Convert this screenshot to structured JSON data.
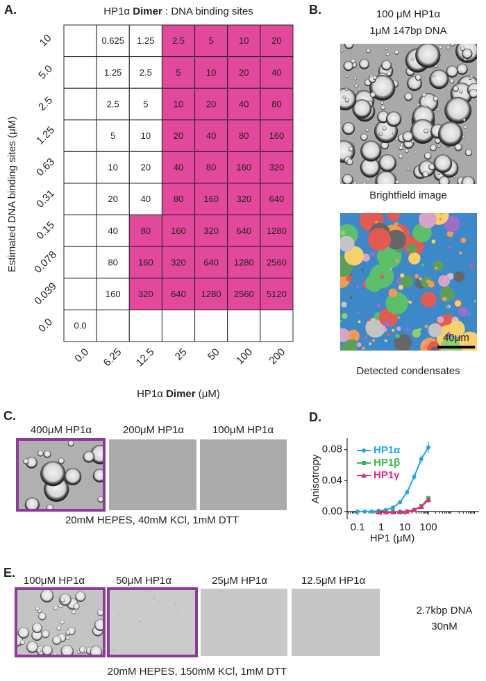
{
  "panel_a": {
    "letter": "A.",
    "title_parts": [
      "HP1α ",
      "Dimer",
      " : DNA binding sites"
    ],
    "y_label": "Estimated DNA binding sites (μM)",
    "x_label_parts": [
      "HP1α ",
      "Dimer",
      " (μM)"
    ],
    "row_labels": [
      "10",
      "5.0",
      "2.5",
      "1.25",
      "0.63",
      "0.31",
      "0.15",
      "0.078",
      "0.039",
      "0.0"
    ],
    "col_labels": [
      "0.0",
      "6.25",
      "12.5",
      "25",
      "50",
      "100",
      "200"
    ],
    "condensate_color": "#e2489b",
    "cells": [
      [
        null,
        "0.625",
        "1.25",
        "2.5",
        "5",
        "10",
        "20"
      ],
      [
        null,
        "1.25",
        "2.5",
        "5",
        "10",
        "20",
        "40"
      ],
      [
        null,
        "2.5",
        "5",
        "10",
        "20",
        "40",
        "80"
      ],
      [
        null,
        "5",
        "10",
        "20",
        "40",
        "80",
        "160"
      ],
      [
        null,
        "10",
        "20",
        "40",
        "80",
        "160",
        "320"
      ],
      [
        null,
        "20",
        "40",
        "80",
        "160",
        "320",
        "640"
      ],
      [
        null,
        "40",
        "80",
        "160",
        "320",
        "640",
        "1280"
      ],
      [
        null,
        "80",
        "160",
        "320",
        "640",
        "1280",
        "2560"
      ],
      [
        null,
        "160",
        "320",
        "640",
        "1280",
        "2560",
        "5120"
      ],
      [
        "0.0",
        null,
        null,
        null,
        null,
        null,
        null
      ]
    ],
    "condensate": [
      [
        false,
        false,
        false,
        true,
        true,
        true,
        true
      ],
      [
        false,
        false,
        false,
        true,
        true,
        true,
        true
      ],
      [
        false,
        false,
        false,
        true,
        true,
        true,
        true
      ],
      [
        false,
        false,
        false,
        true,
        true,
        true,
        true
      ],
      [
        false,
        false,
        false,
        true,
        true,
        true,
        true
      ],
      [
        false,
        false,
        false,
        true,
        true,
        true,
        true
      ],
      [
        false,
        false,
        true,
        true,
        true,
        true,
        true
      ],
      [
        false,
        false,
        true,
        true,
        true,
        true,
        true
      ],
      [
        false,
        false,
        true,
        true,
        true,
        true,
        true
      ],
      [
        false,
        false,
        false,
        false,
        false,
        false,
        false
      ]
    ]
  },
  "panel_b": {
    "letter": "B.",
    "title_lines": [
      "100 μM HP1α",
      "1μM 147bp DNA"
    ],
    "image_captions": [
      "Brightfield image",
      "Detected condensates"
    ],
    "scale_bar": "40μm"
  },
  "panel_c": {
    "letter": "C.",
    "image_labels": [
      "400μM HP1α",
      "200μM HP1α",
      "100μM HP1α"
    ],
    "caption": "20mM HEPES, 40mM KCl, 1mM DTT"
  },
  "chart_data": {
    "type": "line",
    "letter": "D.",
    "y_label": "Anisotropy",
    "x_label": "HP1 (μM)",
    "log_x": true,
    "x": [
      0.1,
      0.2,
      0.39,
      0.78,
      1.56,
      3.13,
      6.25,
      12.5,
      25,
      50,
      100
    ],
    "xlim": [
      0.036,
      14000
    ],
    "xticks": [
      0.1,
      1,
      10,
      100
    ],
    "ylim": [
      -0.01,
      0.095
    ],
    "yticks": [
      {
        "value": 0,
        "label": "0.00"
      },
      {
        "value": 0.04,
        "label": "0.04"
      },
      {
        "value": 0.08,
        "label": "0.08"
      }
    ],
    "legend": "upper left",
    "series": [
      {
        "name": "HP1α",
        "color": "#1ea8e0",
        "marker": "circle",
        "values": [
          0,
          0,
          0,
          0.001,
          0.002,
          0.005,
          0.012,
          0.025,
          0.045,
          0.068,
          0.083
        ],
        "errors": [
          0.001,
          0.001,
          0.001,
          0.001,
          0.001,
          0.002,
          0.002,
          0.003,
          0.004,
          0.006,
          0.008
        ]
      },
      {
        "name": "HP1β",
        "color": "#3ab54a",
        "marker": "square",
        "values": [
          null,
          null,
          null,
          -0.001,
          -0.001,
          0,
          -0.001,
          0,
          0.002,
          0.007,
          0.017
        ],
        "errors": [
          null,
          null,
          null,
          0.001,
          0.001,
          0.001,
          0.001,
          0.001,
          0.002,
          0.003,
          0.004
        ]
      },
      {
        "name": "HP1γ",
        "color": "#e0298a",
        "marker": "triangle",
        "values": [
          null,
          null,
          null,
          -0.001,
          -0.001,
          -0.001,
          0,
          0,
          0.002,
          0.006,
          0.015
        ],
        "errors": [
          null,
          null,
          null,
          0.001,
          0.001,
          0.001,
          0.001,
          0.001,
          0.002,
          0.003,
          0.004
        ]
      }
    ]
  },
  "panel_e": {
    "letter": "E.",
    "image_labels": [
      "100μM HP1α",
      "50μM HP1α",
      "25μM HP1α",
      "12.5μM HP1α"
    ],
    "side_note": [
      "2.7kbp DNA",
      "30nM"
    ],
    "caption": "20mM HEPES, 150mM KCl, 1mM DTT"
  }
}
